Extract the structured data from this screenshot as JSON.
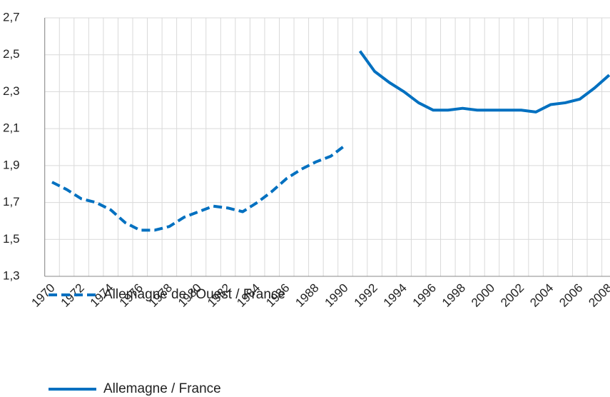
{
  "chart_data": {
    "type": "line",
    "categories": [
      "1970",
      null,
      "1972",
      null,
      "1974",
      null,
      "1976",
      null,
      "1978",
      null,
      "1980",
      null,
      "1982",
      null,
      "1984",
      null,
      "1986",
      null,
      "1988",
      null,
      "1990",
      null,
      "1992",
      null,
      "1994",
      null,
      "1996",
      null,
      "1998",
      null,
      "2000",
      null,
      "2002",
      null,
      "2004",
      null,
      "2006",
      null,
      "2008"
    ],
    "series": [
      {
        "name": "Allemagne de l'Ouest / France",
        "color": "#0070c0",
        "dash": true,
        "values": [
          1.81,
          1.77,
          1.72,
          1.7,
          1.66,
          1.59,
          1.55,
          1.55,
          1.57,
          1.62,
          1.65,
          1.68,
          1.67,
          1.65,
          1.7,
          1.76,
          1.83,
          1.88,
          1.92,
          1.95,
          2.01,
          null,
          null,
          null,
          null,
          null,
          null,
          null,
          null,
          null,
          null,
          null,
          null,
          null,
          null,
          null,
          null,
          null,
          null
        ]
      },
      {
        "name": "Allemagne / France",
        "color": "#0070c0",
        "dash": false,
        "values": [
          null,
          null,
          null,
          null,
          null,
          null,
          null,
          null,
          null,
          null,
          null,
          null,
          null,
          null,
          null,
          null,
          null,
          null,
          null,
          null,
          null,
          2.52,
          2.41,
          2.35,
          2.3,
          2.24,
          2.2,
          2.2,
          2.21,
          2.2,
          2.2,
          2.2,
          2.2,
          2.19,
          2.23,
          2.24,
          2.26,
          2.32,
          2.39
        ]
      }
    ],
    "ylim": [
      1.3,
      2.7
    ],
    "yticks": [
      {
        "value": 1.3,
        "label": "1,3"
      },
      {
        "value": 1.5,
        "label": "1,5"
      },
      {
        "value": 1.7,
        "label": "1,7"
      },
      {
        "value": 1.9,
        "label": "1,9"
      },
      {
        "value": 2.1,
        "label": "2,1"
      },
      {
        "value": 2.3,
        "label": "2,3"
      },
      {
        "value": 2.5,
        "label": "2,5"
      },
      {
        "value": 2.7,
        "label": "2,7"
      }
    ],
    "grid": true
  }
}
